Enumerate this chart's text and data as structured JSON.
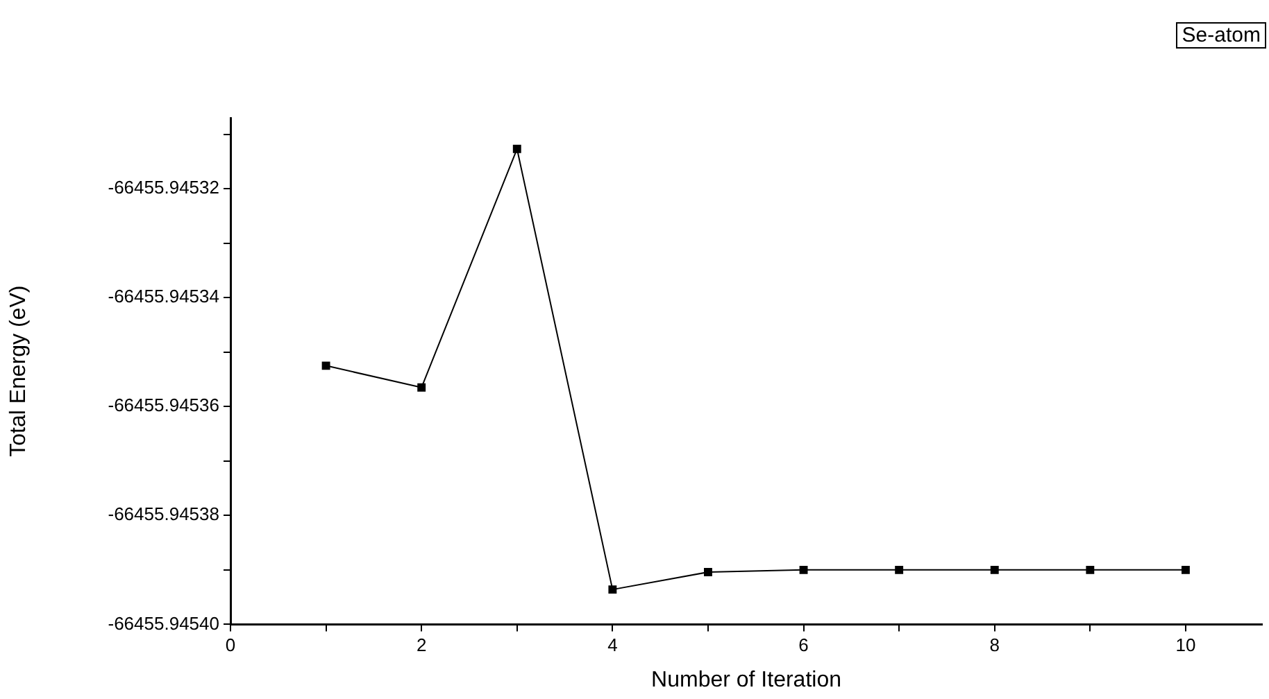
{
  "chart_data": {
    "type": "line",
    "xlabel": "Number of Iteration",
    "ylabel": "Total Energy (eV)",
    "annotations": [
      "Se-atom"
    ],
    "x": [
      1,
      2,
      3,
      4,
      5,
      6,
      7,
      8,
      9,
      10
    ],
    "series": [
      {
        "color": "#000000",
        "values": [
          -66455.9453525,
          -66455.9453565,
          -66455.9453127,
          -66455.9453936,
          -66455.9453904,
          -66455.94539,
          -66455.94539,
          -66455.94539,
          -66455.94539,
          -66455.94539
        ]
      }
    ],
    "xlim": [
      0,
      10.8
    ],
    "xticks": [
      0,
      {
        "value": 1,
        "label": null
      },
      2,
      {
        "value": 3,
        "label": null
      },
      4,
      {
        "value": 5,
        "label": null
      },
      6,
      {
        "value": 7,
        "label": null
      },
      8,
      {
        "value": 9,
        "label": null
      },
      10
    ],
    "ylim": [
      -66455.9454,
      -66455.945307
    ],
    "yticks": [
      {
        "value": -66455.9454,
        "label": "-66455.94540"
      },
      {
        "value": -66455.94539,
        "label": null
      },
      {
        "value": -66455.94538,
        "label": "-66455.94538"
      },
      {
        "value": -66455.94537,
        "label": null
      },
      {
        "value": -66455.94536,
        "label": "-66455.94536"
      },
      {
        "value": -66455.94535,
        "label": null
      },
      {
        "value": -66455.94534,
        "label": "-66455.94534"
      },
      {
        "value": -66455.94533,
        "label": null
      },
      {
        "value": -66455.94532,
        "label": "-66455.94532"
      },
      {
        "value": -66455.94531,
        "label": null
      }
    ],
    "grid": false,
    "legend": false,
    "marker": "square",
    "line_style": "solid"
  }
}
